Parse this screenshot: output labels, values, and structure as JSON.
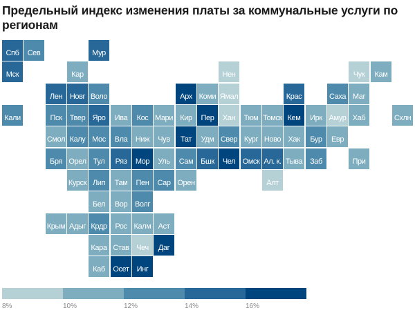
{
  "title": "Предельный индекс изменения платы за коммунальные услуги по регионам",
  "chart_data": {
    "type": "heatmap",
    "subtype": "tile-grid-map",
    "title": "Предельный индекс изменения платы за коммунальные услуги по регионам",
    "color_classes": [
      {
        "label": "8%",
        "range": [
          8,
          10
        ],
        "color": "#b5d1d6"
      },
      {
        "label": "10%",
        "range": [
          10,
          12
        ],
        "color": "#7eadbf"
      },
      {
        "label": "12%",
        "range": [
          12,
          14
        ],
        "color": "#4d8aab"
      },
      {
        "label": "14%",
        "range": [
          14,
          16
        ],
        "color": "#276898"
      },
      {
        "label": "16%",
        "range": [
          16,
          18
        ],
        "color": "#01457f"
      }
    ],
    "legend_ticks": [
      "8%",
      "10%",
      "12%",
      "14%",
      "16%"
    ],
    "regions": [
      {
        "name": "Спб",
        "row": 0,
        "col": 0,
        "class": 4
      },
      {
        "name": "Сев",
        "row": 0,
        "col": 1,
        "class": 3
      },
      {
        "name": "Мур",
        "row": 0,
        "col": 4,
        "class": 4
      },
      {
        "name": "Мск",
        "row": 1,
        "col": 0,
        "class": 4
      },
      {
        "name": "Кар",
        "row": 1,
        "col": 3,
        "class": 2
      },
      {
        "name": "Нен",
        "row": 1,
        "col": 10,
        "class": 1
      },
      {
        "name": "Чук",
        "row": 1,
        "col": 16,
        "class": 1
      },
      {
        "name": "Кам",
        "row": 1,
        "col": 17,
        "class": 2
      },
      {
        "name": "Лен",
        "row": 2,
        "col": 2,
        "class": 4
      },
      {
        "name": "Новг",
        "row": 2,
        "col": 3,
        "class": 4
      },
      {
        "name": "Воло",
        "row": 2,
        "col": 4,
        "class": 3
      },
      {
        "name": "Арх",
        "row": 2,
        "col": 8,
        "class": 5
      },
      {
        "name": "Коми",
        "row": 2,
        "col": 9,
        "class": 2
      },
      {
        "name": "Ямал",
        "row": 2,
        "col": 10,
        "class": 1
      },
      {
        "name": "Крас",
        "row": 2,
        "col": 13,
        "class": 4
      },
      {
        "name": "Саха",
        "row": 2,
        "col": 15,
        "class": 3
      },
      {
        "name": "Маг",
        "row": 2,
        "col": 16,
        "class": 2
      },
      {
        "name": "Кали",
        "row": 3,
        "col": 0,
        "class": 3
      },
      {
        "name": "Пск",
        "row": 3,
        "col": 2,
        "class": 3
      },
      {
        "name": "Твер",
        "row": 3,
        "col": 3,
        "class": 3
      },
      {
        "name": "Яро",
        "row": 3,
        "col": 4,
        "class": 4
      },
      {
        "name": "Ива",
        "row": 3,
        "col": 5,
        "class": 2
      },
      {
        "name": "Кос",
        "row": 3,
        "col": 6,
        "class": 3
      },
      {
        "name": "Мари",
        "row": 3,
        "col": 7,
        "class": 2
      },
      {
        "name": "Кир",
        "row": 3,
        "col": 8,
        "class": 2
      },
      {
        "name": "Пер",
        "row": 3,
        "col": 9,
        "class": 5
      },
      {
        "name": "Хан",
        "row": 3,
        "col": 10,
        "class": 1
      },
      {
        "name": "Тюм",
        "row": 3,
        "col": 11,
        "class": 2
      },
      {
        "name": "Томск",
        "row": 3,
        "col": 12,
        "class": 2
      },
      {
        "name": "Кем",
        "row": 3,
        "col": 13,
        "class": 5
      },
      {
        "name": "Ирк",
        "row": 3,
        "col": 14,
        "class": 2
      },
      {
        "name": "Амур",
        "row": 3,
        "col": 15,
        "class": 1
      },
      {
        "name": "Хаб",
        "row": 3,
        "col": 16,
        "class": 2
      },
      {
        "name": "Схлн",
        "row": 3,
        "col": 18,
        "class": 2
      },
      {
        "name": "Смол",
        "row": 4,
        "col": 2,
        "class": 2
      },
      {
        "name": "Калу",
        "row": 4,
        "col": 3,
        "class": 3
      },
      {
        "name": "Мос",
        "row": 4,
        "col": 4,
        "class": 3
      },
      {
        "name": "Вла",
        "row": 4,
        "col": 5,
        "class": 3
      },
      {
        "name": "Ниж",
        "row": 4,
        "col": 6,
        "class": 2
      },
      {
        "name": "Чув",
        "row": 4,
        "col": 7,
        "class": 2
      },
      {
        "name": "Тат",
        "row": 4,
        "col": 8,
        "class": 5
      },
      {
        "name": "Удм",
        "row": 4,
        "col": 9,
        "class": 2
      },
      {
        "name": "Свер",
        "row": 4,
        "col": 10,
        "class": 3
      },
      {
        "name": "Кург",
        "row": 4,
        "col": 11,
        "class": 2
      },
      {
        "name": "Ново",
        "row": 4,
        "col": 12,
        "class": 2
      },
      {
        "name": "Хак",
        "row": 4,
        "col": 13,
        "class": 2
      },
      {
        "name": "Бур",
        "row": 4,
        "col": 14,
        "class": 3
      },
      {
        "name": "Евр",
        "row": 4,
        "col": 15,
        "class": 2
      },
      {
        "name": "Бря",
        "row": 5,
        "col": 2,
        "class": 3
      },
      {
        "name": "Орел",
        "row": 5,
        "col": 3,
        "class": 2
      },
      {
        "name": "Тул",
        "row": 5,
        "col": 4,
        "class": 3
      },
      {
        "name": "Ряз",
        "row": 5,
        "col": 5,
        "class": 4
      },
      {
        "name": "Мор",
        "row": 5,
        "col": 6,
        "class": 5
      },
      {
        "name": "Уль",
        "row": 5,
        "col": 7,
        "class": 2
      },
      {
        "name": "Сам",
        "row": 5,
        "col": 8,
        "class": 3
      },
      {
        "name": "Бшк",
        "row": 5,
        "col": 9,
        "class": 4
      },
      {
        "name": "Чел",
        "row": 5,
        "col": 10,
        "class": 5
      },
      {
        "name": "Омск",
        "row": 5,
        "col": 11,
        "class": 4
      },
      {
        "name": "Ал. к.",
        "row": 5,
        "col": 12,
        "class": 4
      },
      {
        "name": "Тыва",
        "row": 5,
        "col": 13,
        "class": 2
      },
      {
        "name": "Заб",
        "row": 5,
        "col": 14,
        "class": 3
      },
      {
        "name": "При",
        "row": 5,
        "col": 16,
        "class": 2
      },
      {
        "name": "Курск",
        "row": 6,
        "col": 3,
        "class": 2
      },
      {
        "name": "Лип",
        "row": 6,
        "col": 4,
        "class": 3
      },
      {
        "name": "Там",
        "row": 6,
        "col": 5,
        "class": 2
      },
      {
        "name": "Пен",
        "row": 6,
        "col": 6,
        "class": 3
      },
      {
        "name": "Сар",
        "row": 6,
        "col": 7,
        "class": 3
      },
      {
        "name": "Орен",
        "row": 6,
        "col": 8,
        "class": 2
      },
      {
        "name": "Алт",
        "row": 6,
        "col": 12,
        "class": 1
      },
      {
        "name": "Бел",
        "row": 7,
        "col": 4,
        "class": 2
      },
      {
        "name": "Вор",
        "row": 7,
        "col": 5,
        "class": 2
      },
      {
        "name": "Волг",
        "row": 7,
        "col": 6,
        "class": 3
      },
      {
        "name": "Крым",
        "row": 8,
        "col": 2,
        "class": 2
      },
      {
        "name": "Адыг",
        "row": 8,
        "col": 3,
        "class": 2
      },
      {
        "name": "Крдр",
        "row": 8,
        "col": 4,
        "class": 3
      },
      {
        "name": "Рос",
        "row": 8,
        "col": 5,
        "class": 2
      },
      {
        "name": "Калм",
        "row": 8,
        "col": 6,
        "class": 2
      },
      {
        "name": "Аст",
        "row": 8,
        "col": 7,
        "class": 2
      },
      {
        "name": "Кара",
        "row": 9,
        "col": 4,
        "class": 2
      },
      {
        "name": "Став",
        "row": 9,
        "col": 5,
        "class": 2
      },
      {
        "name": "Чеч",
        "row": 9,
        "col": 6,
        "class": 1
      },
      {
        "name": "Даг",
        "row": 9,
        "col": 7,
        "class": 5
      },
      {
        "name": "Каб",
        "row": 10,
        "col": 4,
        "class": 2
      },
      {
        "name": "Осет",
        "row": 10,
        "col": 5,
        "class": 5
      },
      {
        "name": "Инг",
        "row": 10,
        "col": 6,
        "class": 5
      }
    ]
  }
}
